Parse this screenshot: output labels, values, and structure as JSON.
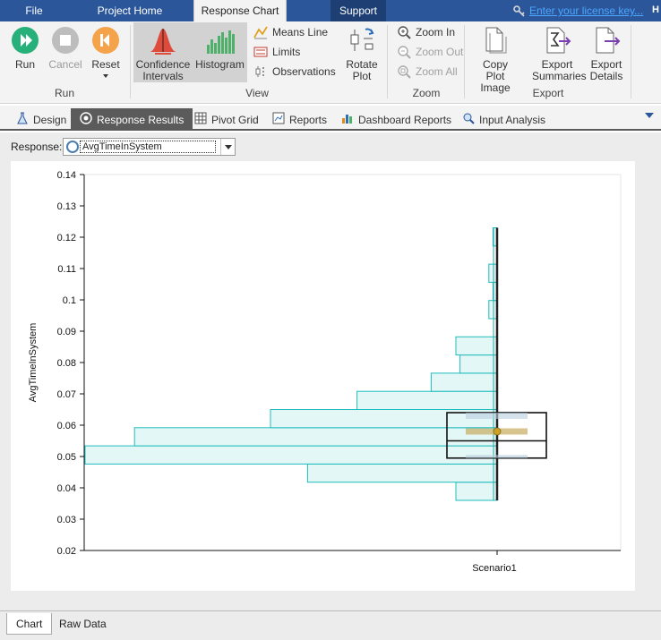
{
  "ribbon_tabs": [
    {
      "label": "File"
    },
    {
      "label": "Project Home"
    },
    {
      "label": "Response Chart"
    },
    {
      "label": "Support"
    }
  ],
  "license_link": "Enter your license key...",
  "ribbon": {
    "run_group": {
      "label": "Run",
      "run": "Run",
      "cancel": "Cancel",
      "reset": "Reset"
    },
    "view_group": {
      "label": "View",
      "confidence": "Confidence Intervals",
      "histogram": "Histogram",
      "means_line": "Means Line",
      "limits": "Limits",
      "observations": "Observations",
      "rotate": "Rotate Plot"
    },
    "zoom_group": {
      "label": "Zoom",
      "zoom_in": "Zoom In",
      "zoom_out": "Zoom Out",
      "zoom_all": "Zoom All"
    },
    "export_group": {
      "label": "Export",
      "copy_plot": "Copy Plot Image",
      "export_summaries": "Export Summaries",
      "export_details": "Export Details"
    }
  },
  "doc_tabs": [
    {
      "label": "Design",
      "icon": "flask-icon"
    },
    {
      "label": "Response Results",
      "icon": "target-icon"
    },
    {
      "label": "Pivot Grid",
      "icon": "grid-icon"
    },
    {
      "label": "Reports",
      "icon": "report-icon"
    },
    {
      "label": "Dashboard Reports",
      "icon": "dashboard-icon"
    },
    {
      "label": "Input Analysis",
      "icon": "analysis-icon"
    }
  ],
  "response": {
    "label": "Response:",
    "value": "AvgTimeInSystem"
  },
  "bottom_tabs": [
    {
      "label": "Chart"
    },
    {
      "label": "Raw Data"
    }
  ],
  "colors": {
    "accent": "#2b579a",
    "histogram_fill": "#dff6f6",
    "histogram_stroke": "#1fbcbc",
    "ci_fill": "#c9b06a",
    "mean_dot": "#c9a227"
  },
  "chart_data": {
    "type": "box-histogram",
    "ylabel": "AvgTimeInSystem",
    "xlabel": "",
    "categories": [
      "Scenario1"
    ],
    "ylim": [
      0.02,
      0.14
    ],
    "yticks": [
      "0.02",
      "0.03",
      "0.04",
      "0.05",
      "0.06",
      "0.07",
      "0.08",
      "0.09",
      "0.1",
      "0.11",
      "0.12",
      "0.13",
      "0.14"
    ],
    "grid": false,
    "histogram": [
      {
        "bin_low": 0.036,
        "bin_high": 0.0418,
        "relative_frequency": 0.1
      },
      {
        "bin_low": 0.0418,
        "bin_high": 0.0476,
        "relative_frequency": 0.46
      },
      {
        "bin_low": 0.0476,
        "bin_high": 0.0534,
        "relative_frequency": 1.0
      },
      {
        "bin_low": 0.0534,
        "bin_high": 0.0592,
        "relative_frequency": 0.88
      },
      {
        "bin_low": 0.0592,
        "bin_high": 0.065,
        "relative_frequency": 0.55
      },
      {
        "bin_low": 0.065,
        "bin_high": 0.0708,
        "relative_frequency": 0.34
      },
      {
        "bin_low": 0.0708,
        "bin_high": 0.0766,
        "relative_frequency": 0.16
      },
      {
        "bin_low": 0.0766,
        "bin_high": 0.0824,
        "relative_frequency": 0.09
      },
      {
        "bin_low": 0.0824,
        "bin_high": 0.0882,
        "relative_frequency": 0.1
      },
      {
        "bin_low": 0.0882,
        "bin_high": 0.094,
        "relative_frequency": 0.0
      },
      {
        "bin_low": 0.094,
        "bin_high": 0.0998,
        "relative_frequency": 0.02
      },
      {
        "bin_low": 0.0998,
        "bin_high": 0.1056,
        "relative_frequency": 0.01
      },
      {
        "bin_low": 0.1056,
        "bin_high": 0.1114,
        "relative_frequency": 0.02
      },
      {
        "bin_low": 0.1114,
        "bin_high": 0.1172,
        "relative_frequency": 0.0
      },
      {
        "bin_low": 0.1172,
        "bin_high": 0.123,
        "relative_frequency": 0.01
      }
    ],
    "box": {
      "min": 0.036,
      "q1": 0.0495,
      "median": 0.055,
      "q3": 0.064,
      "max": 0.123,
      "mean": 0.058,
      "mean_ci": [
        0.057,
        0.059
      ],
      "lower_ci": [
        0.0495,
        0.0505
      ],
      "upper_ci": [
        0.062,
        0.064
      ]
    }
  }
}
